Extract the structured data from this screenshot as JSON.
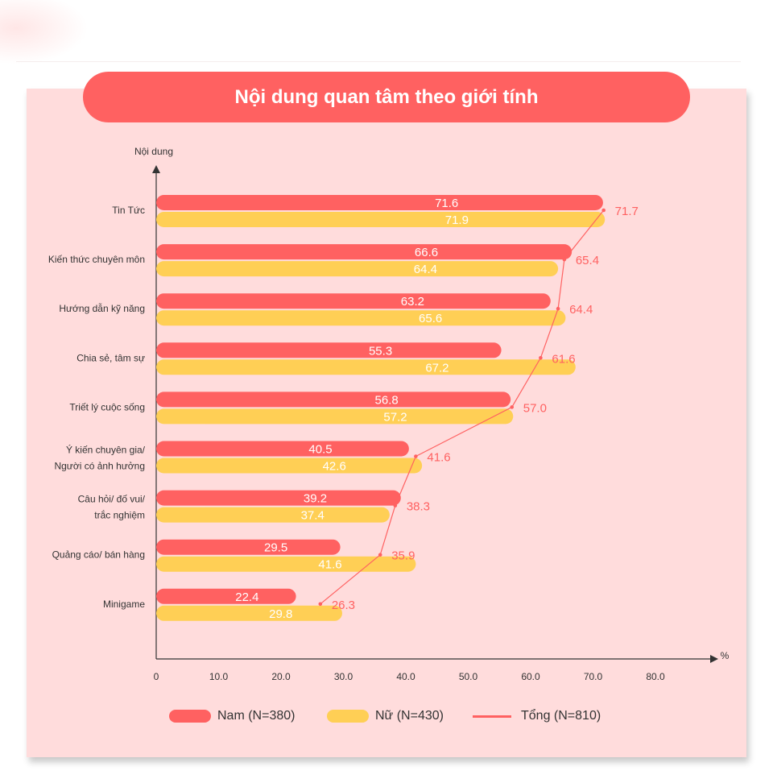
{
  "title": "Nội dung quan tâm theo giới tính",
  "colors": {
    "nam": "#ff6161",
    "nu": "#ffcf55",
    "tong": "#ff6161",
    "panel": "#ffdcdc"
  },
  "legend": [
    {
      "label": "Nam (N=380)",
      "kind": "bar",
      "color": "#ff6161"
    },
    {
      "label": "Nữ (N=430)",
      "kind": "bar",
      "color": "#ffcf55"
    },
    {
      "label": "Tổng (N=810)",
      "kind": "line",
      "color": "#ff6161"
    }
  ],
  "chart_data": {
    "type": "bar",
    "orientation": "horizontal",
    "ylabel": "Nội dung",
    "xlabel": "%",
    "xlim": [
      0,
      80
    ],
    "xticks": [
      "0",
      "10.0",
      "20.0",
      "30.0",
      "40.0",
      "50.0",
      "60.0",
      "70.0",
      "80.0"
    ],
    "categories": [
      [
        "Tin Tức"
      ],
      [
        "Kiến thức chuyên môn"
      ],
      [
        "Hướng dẫn kỹ năng"
      ],
      [
        "Chia sẻ, tâm sự"
      ],
      [
        "Triết lý cuộc sống"
      ],
      [
        "Ý kiến chuyên gia/",
        "Người có ảnh hưởng"
      ],
      [
        "Câu hỏi/ đố vui/",
        "trắc nghiệm"
      ],
      [
        "Quảng cáo/ bán hàng"
      ],
      [
        "Minigame"
      ]
    ],
    "series": [
      {
        "name": "Nam (N=380)",
        "type": "bar",
        "values": [
          "71.6",
          "66.6",
          "63.2",
          "55.3",
          "56.8",
          "40.5",
          "39.2",
          "29.5",
          "22.4"
        ]
      },
      {
        "name": "Nữ (N=430)",
        "type": "bar",
        "values": [
          "71.9",
          "64.4",
          "65.6",
          "67.2",
          "57.2",
          "42.6",
          "37.4",
          "41.6",
          "29.8"
        ]
      },
      {
        "name": "Tổng (N=810)",
        "type": "line",
        "values": [
          "71.7",
          "65.4",
          "64.4",
          "61.6",
          "57.0",
          "41.6",
          "38.3",
          "35.9",
          "26.3"
        ]
      }
    ],
    "grid": false,
    "legend_position": "bottom"
  }
}
